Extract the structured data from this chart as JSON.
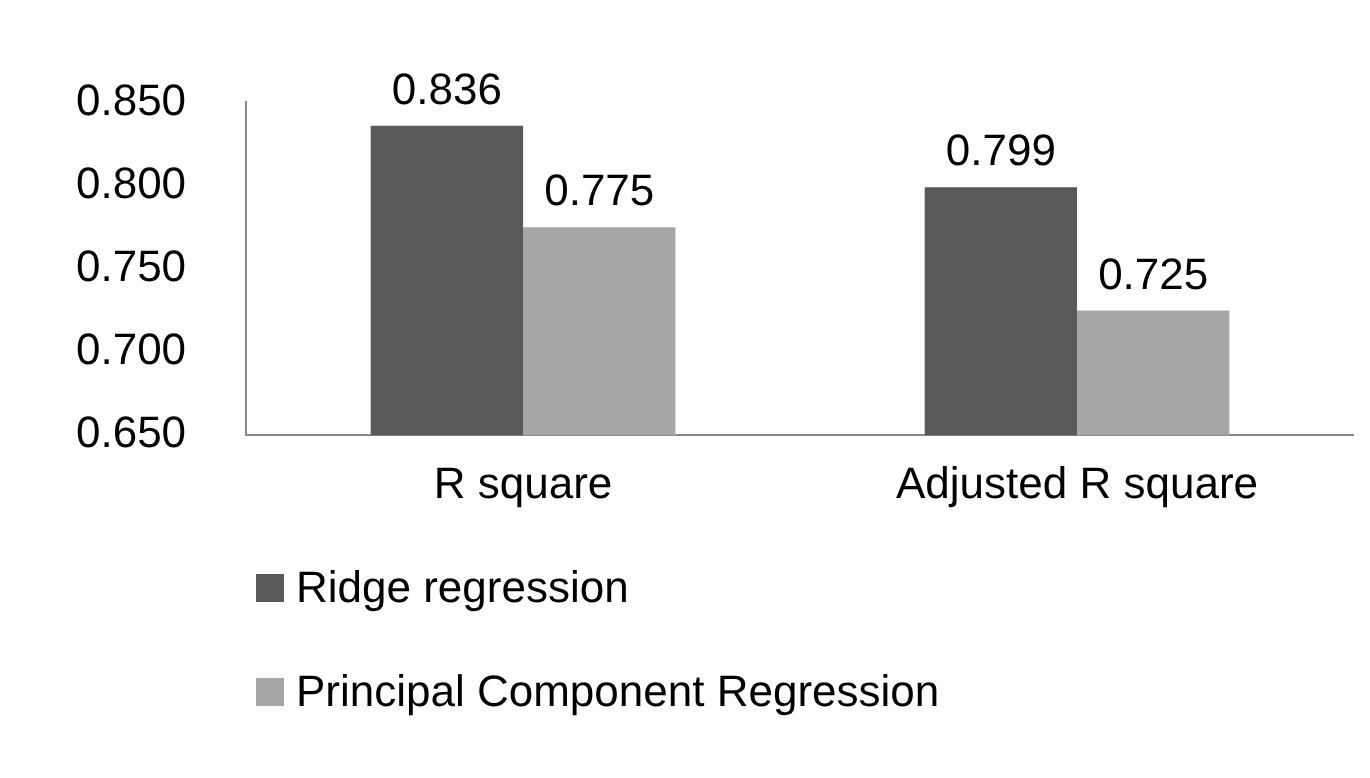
{
  "chart_data": {
    "type": "bar",
    "categories": [
      "R square",
      "Adjusted R square"
    ],
    "series": [
      {
        "name": "Ridge regression",
        "color": "#595959",
        "values": [
          0.836,
          0.799
        ]
      },
      {
        "name": "Principal Component Regression",
        "color": "#a6a6a6",
        "values": [
          0.775,
          0.725
        ]
      }
    ],
    "ylim": [
      0.65,
      0.85
    ],
    "yticks": [
      "0.650",
      "0.700",
      "0.750",
      "0.800",
      "0.850"
    ],
    "grid": false,
    "legend": "bottom",
    "data_labels": true
  }
}
